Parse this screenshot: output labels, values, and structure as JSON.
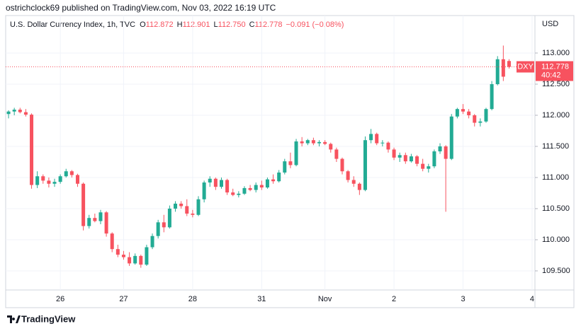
{
  "header": {
    "published": "ostrichclock69 published on TradingView.com, Nov 03, 2022 16:19 UTC",
    "brand": "TradingView"
  },
  "chart_data": {
    "type": "candlestick",
    "legend": {
      "name": "U.S. Dollar Currency Index, 1h, TVC",
      "o": "O",
      "open": "112.872",
      "h": "H",
      "high": "112.901",
      "l": "L",
      "low": "112.750",
      "c": "C",
      "close": "112.778",
      "change": "−0.091 (−0.08%)"
    },
    "currency": "USD",
    "symbol": "DXY",
    "countdown": "40:42",
    "up_color": "#22ab94",
    "down_color": "#f7525f",
    "grid": true,
    "categories": [
      null,
      null,
      null,
      null,
      null,
      null,
      null,
      null,
      null,
      "26",
      null,
      null,
      null,
      null,
      null,
      null,
      null,
      null,
      null,
      null,
      "27",
      null,
      null,
      null,
      null,
      null,
      null,
      null,
      null,
      null,
      null,
      null,
      "28",
      null,
      null,
      null,
      null,
      null,
      null,
      null,
      null,
      null,
      null,
      null,
      "31",
      null,
      null,
      null,
      null,
      null,
      null,
      null,
      null,
      null,
      null,
      "Nov",
      null,
      null,
      null,
      null,
      null,
      null,
      null,
      null,
      null,
      null,
      null,
      "2",
      null,
      null,
      null,
      null,
      null,
      null,
      null,
      null,
      null,
      null,
      null,
      "3",
      null,
      null,
      null,
      null,
      null,
      null,
      null,
      null,
      null,
      null,
      null,
      "4"
    ],
    "open": [
      112.02,
      112.06,
      112.09,
      112.05,
      112.01,
      110.88,
      111.02,
      110.95,
      110.9,
      110.93,
      111.02,
      111.1,
      111.04,
      110.9,
      110.22,
      110.35,
      110.3,
      110.44,
      110.1,
      109.85,
      109.76,
      109.72,
      109.62,
      109.74,
      109.6,
      109.88,
      110.06,
      110.28,
      110.2,
      110.5,
      110.58,
      110.54,
      110.42,
      110.4,
      110.65,
      110.92,
      110.98,
      110.85,
      110.96,
      110.76,
      110.72,
      110.74,
      110.83,
      110.8,
      110.88,
      110.84,
      110.97,
      110.94,
      111.08,
      111.26,
      111.2,
      111.58,
      111.55,
      111.6,
      111.55,
      111.57,
      111.54,
      111.45,
      111.3,
      111.1,
      110.96,
      110.9,
      110.8,
      111.6,
      111.7,
      111.55,
      111.56,
      111.45,
      111.32,
      111.36,
      111.26,
      111.34,
      111.22,
      111.14,
      111.18,
      111.42,
      111.5,
      111.3,
      111.98,
      112.1,
      112.06,
      112.0,
      111.88,
      111.9,
      112.1,
      112.5,
      112.9,
      112.872,
      null,
      null,
      null,
      null
    ],
    "high": [
      112.08,
      112.12,
      112.12,
      112.1,
      112.03,
      111.1,
      111.05,
      111.0,
      110.98,
      111.05,
      111.14,
      111.12,
      111.06,
      110.92,
      110.4,
      110.42,
      110.48,
      110.46,
      110.12,
      109.92,
      109.82,
      109.8,
      109.78,
      109.76,
      109.92,
      110.1,
      110.32,
      110.4,
      110.55,
      110.62,
      110.62,
      110.65,
      110.48,
      110.7,
      110.95,
      111.02,
      111.0,
      111.0,
      110.98,
      110.82,
      110.78,
      110.86,
      110.88,
      110.92,
      110.95,
      111.0,
      111.05,
      111.12,
      111.3,
      111.4,
      111.62,
      111.65,
      111.62,
      111.64,
      111.6,
      111.6,
      111.56,
      111.48,
      111.32,
      111.12,
      111.02,
      110.92,
      111.66,
      111.78,
      111.72,
      111.6,
      111.58,
      111.48,
      111.4,
      111.4,
      111.38,
      111.36,
      111.3,
      111.22,
      111.45,
      111.55,
      111.52,
      112.02,
      112.12,
      112.18,
      112.1,
      112.02,
      111.95,
      112.12,
      112.55,
      112.95,
      113.12,
      112.901,
      null,
      null,
      null,
      null
    ],
    "low": [
      111.95,
      112.0,
      112.03,
      111.98,
      110.82,
      110.83,
      110.9,
      110.84,
      110.85,
      110.9,
      111.0,
      111.0,
      110.85,
      110.15,
      110.18,
      110.28,
      110.25,
      110.05,
      109.8,
      109.72,
      109.68,
      109.58,
      109.6,
      109.55,
      109.58,
      109.85,
      110.02,
      110.12,
      110.18,
      110.45,
      110.5,
      110.38,
      110.36,
      110.38,
      110.6,
      110.85,
      110.8,
      110.82,
      110.72,
      110.7,
      110.68,
      110.72,
      110.78,
      110.76,
      110.8,
      110.82,
      110.9,
      110.92,
      111.05,
      111.15,
      111.18,
      111.5,
      111.52,
      111.52,
      111.5,
      111.52,
      111.4,
      111.25,
      111.05,
      110.92,
      110.85,
      110.72,
      110.78,
      111.55,
      111.52,
      111.5,
      111.4,
      111.28,
      111.25,
      111.22,
      111.24,
      111.18,
      111.1,
      111.08,
      111.15,
      111.38,
      110.45,
      111.28,
      111.95,
      112.02,
      111.95,
      111.82,
      111.82,
      111.88,
      112.08,
      112.48,
      112.55,
      112.75,
      null,
      null,
      null,
      null
    ],
    "close": [
      112.06,
      112.09,
      112.05,
      112.01,
      110.88,
      111.02,
      110.95,
      110.9,
      110.93,
      111.02,
      111.1,
      111.04,
      110.9,
      110.22,
      110.35,
      110.3,
      110.44,
      110.1,
      109.85,
      109.76,
      109.72,
      109.62,
      109.74,
      109.6,
      109.88,
      110.06,
      110.28,
      110.2,
      110.5,
      110.58,
      110.54,
      110.42,
      110.4,
      110.65,
      110.92,
      110.98,
      110.85,
      110.96,
      110.76,
      110.72,
      110.74,
      110.83,
      110.8,
      110.88,
      110.84,
      110.97,
      110.94,
      111.08,
      111.26,
      111.2,
      111.58,
      111.55,
      111.6,
      111.55,
      111.57,
      111.54,
      111.45,
      111.3,
      111.1,
      110.96,
      110.9,
      110.8,
      111.6,
      111.7,
      111.55,
      111.56,
      111.45,
      111.32,
      111.36,
      111.26,
      111.34,
      111.22,
      111.14,
      111.18,
      111.42,
      111.5,
      111.3,
      111.98,
      112.1,
      112.06,
      112.0,
      111.88,
      111.9,
      112.1,
      112.5,
      112.9,
      112.62,
      112.778,
      null,
      null,
      null,
      null
    ],
    "ylim": [
      109.193,
      113.602
    ],
    "yticks": [
      {
        "value": 109.5,
        "label": "109.500"
      },
      {
        "value": 110,
        "label": "110.000"
      },
      {
        "value": 110.5,
        "label": "110.500"
      },
      {
        "value": 111,
        "label": "111.000"
      },
      {
        "value": 111.5,
        "label": "111.500"
      },
      {
        "value": 112,
        "label": "112.000"
      },
      {
        "value": 112.5,
        "label": "112.500"
      },
      {
        "value": 113,
        "label": "113.000"
      }
    ]
  }
}
